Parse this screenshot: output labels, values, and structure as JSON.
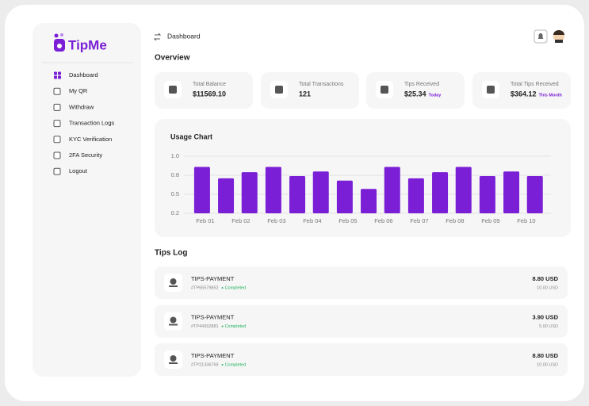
{
  "sidebar": {
    "logo": "TipMe",
    "nav": [
      "Dashboard",
      "My QR",
      "Withdraw",
      "Transaction Logs",
      "KYC Verification",
      "2FA Security",
      "Logout"
    ]
  },
  "header": {
    "title": "Dashboard"
  },
  "overview": {
    "title": "Overview",
    "cards": [
      {
        "label": "Total Balance",
        "value": "$11569.10"
      },
      {
        "label": "Total Transactions",
        "value": "121"
      },
      {
        "label": "Tips Received",
        "value": "$25.34",
        "note": "Today"
      },
      {
        "label": "Total Tips Received",
        "value": "$364.12",
        "note": "This Month"
      }
    ]
  },
  "chart_data": {
    "type": "bar",
    "title": "Usage Chart",
    "x": [
      1,
      1.67,
      2.33,
      3,
      3.67,
      4.33,
      5,
      5.67,
      6.33,
      7,
      7.67,
      8.33,
      9,
      9.67,
      10.33
    ],
    "values": [
      0.86,
      0.71,
      0.79,
      0.86,
      0.74,
      0.8,
      0.68,
      0.57,
      0.86,
      0.71,
      0.79,
      0.86,
      0.74,
      0.8,
      0.74
    ],
    "color": "#7a1fd6",
    "xlim": [
      0.78,
      10.78
    ],
    "xticks": [
      {
        "value": 1,
        "label": "Feb 01"
      },
      {
        "value": 2,
        "label": "Feb 02"
      },
      {
        "value": 3,
        "label": "Feb 03"
      },
      {
        "value": 4,
        "label": "Feb 04"
      },
      {
        "value": 5,
        "label": "Feb 05"
      },
      {
        "value": 6,
        "label": "Feb 06"
      },
      {
        "value": 7,
        "label": "Feb 07"
      },
      {
        "value": 8,
        "label": "Feb 08"
      },
      {
        "value": 9,
        "label": "Feb 09"
      },
      {
        "value": 10,
        "label": "Feb 10"
      }
    ],
    "ylim": [
      0.25,
      1.0
    ],
    "yticks": [
      {
        "value": 0.25,
        "label": "0.2"
      },
      {
        "value": 0.5,
        "label": "0.5"
      },
      {
        "value": 0.75,
        "label": "0.8"
      },
      {
        "value": 1.0,
        "label": "1.0"
      }
    ],
    "grid": true
  },
  "tips_log": {
    "title": "Tips Log",
    "rows": [
      {
        "name": "TIPS-PAYMENT",
        "id": "#TP65579852",
        "status": "Completed",
        "amount": "8.80 USD",
        "gross": "10.00 USD"
      },
      {
        "name": "TIPS-PAYMENT",
        "id": "#TP44392881",
        "status": "Completed",
        "amount": "3.90 USD",
        "gross": "5.00 USD"
      },
      {
        "name": "TIPS-PAYMENT",
        "id": "#TP21336769",
        "status": "Completed",
        "amount": "8.80 USD",
        "gross": "10.00 USD"
      }
    ]
  }
}
